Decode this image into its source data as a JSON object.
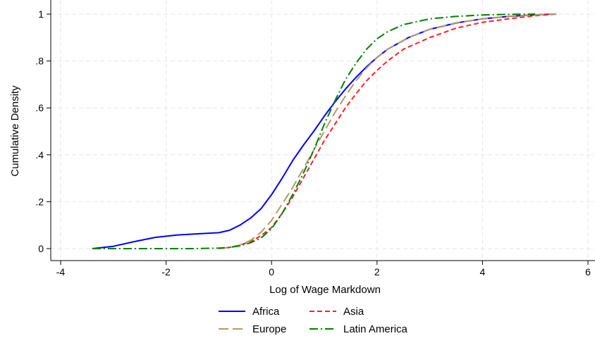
{
  "chart_data": {
    "type": "line",
    "title": "",
    "xlabel": "Log of Wage Markdown",
    "ylabel": "Cumulative Density",
    "xlim": [
      -4,
      6
    ],
    "ylim": [
      0,
      1
    ],
    "grid": true,
    "legend_position": "bottom",
    "x_ticks": [
      {
        "value": -4,
        "label": "-4"
      },
      {
        "value": -2,
        "label": "-2"
      },
      {
        "value": 0,
        "label": "0"
      },
      {
        "value": 2,
        "label": "2"
      },
      {
        "value": 4,
        "label": "4"
      },
      {
        "value": 6,
        "label": "6"
      }
    ],
    "y_ticks": [
      {
        "value": 0,
        "label": "0"
      },
      {
        "value": 0.2,
        "label": ".2"
      },
      {
        "value": 0.4,
        "label": ".4"
      },
      {
        "value": 0.6,
        "label": ".6"
      },
      {
        "value": 0.8,
        "label": ".8"
      },
      {
        "value": 1,
        "label": "1"
      }
    ],
    "series": [
      {
        "name": "Africa",
        "color": "#0000ff",
        "dash": "solid",
        "points": [
          [
            -3.4,
            0.0
          ],
          [
            -3.0,
            0.01
          ],
          [
            -2.6,
            0.03
          ],
          [
            -2.2,
            0.048
          ],
          [
            -1.8,
            0.058
          ],
          [
            -1.4,
            0.063
          ],
          [
            -1.0,
            0.068
          ],
          [
            -0.8,
            0.078
          ],
          [
            -0.6,
            0.1
          ],
          [
            -0.4,
            0.13
          ],
          [
            -0.2,
            0.17
          ],
          [
            0.0,
            0.23
          ],
          [
            0.2,
            0.3
          ],
          [
            0.4,
            0.375
          ],
          [
            0.6,
            0.44
          ],
          [
            0.8,
            0.5
          ],
          [
            1.0,
            0.565
          ],
          [
            1.2,
            0.625
          ],
          [
            1.4,
            0.68
          ],
          [
            1.6,
            0.73
          ],
          [
            1.8,
            0.775
          ],
          [
            2.0,
            0.815
          ],
          [
            2.2,
            0.85
          ],
          [
            2.6,
            0.9
          ],
          [
            3.0,
            0.935
          ],
          [
            3.5,
            0.962
          ],
          [
            4.0,
            0.98
          ],
          [
            4.5,
            0.99
          ],
          [
            5.0,
            0.997
          ],
          [
            5.4,
            1.0
          ]
        ]
      },
      {
        "name": "Asia",
        "color": "#ff2020",
        "dash": "dash",
        "points": [
          [
            -1.0,
            0.0
          ],
          [
            -0.8,
            0.005
          ],
          [
            -0.6,
            0.015
          ],
          [
            -0.4,
            0.03
          ],
          [
            -0.2,
            0.055
          ],
          [
            0.0,
            0.09
          ],
          [
            0.2,
            0.15
          ],
          [
            0.4,
            0.22
          ],
          [
            0.6,
            0.3
          ],
          [
            0.8,
            0.38
          ],
          [
            1.0,
            0.46
          ],
          [
            1.2,
            0.53
          ],
          [
            1.4,
            0.6
          ],
          [
            1.6,
            0.66
          ],
          [
            1.8,
            0.715
          ],
          [
            2.0,
            0.76
          ],
          [
            2.2,
            0.8
          ],
          [
            2.5,
            0.85
          ],
          [
            3.0,
            0.9
          ],
          [
            3.5,
            0.94
          ],
          [
            4.0,
            0.965
          ],
          [
            4.5,
            0.98
          ],
          [
            5.0,
            0.993
          ],
          [
            5.4,
            1.0
          ]
        ]
      },
      {
        "name": "Europe",
        "color": "#b09a6a",
        "dash": "longdash",
        "points": [
          [
            -1.0,
            0.0
          ],
          [
            -0.8,
            0.005
          ],
          [
            -0.6,
            0.015
          ],
          [
            -0.4,
            0.035
          ],
          [
            -0.2,
            0.07
          ],
          [
            0.0,
            0.12
          ],
          [
            0.2,
            0.19
          ],
          [
            0.4,
            0.26
          ],
          [
            0.6,
            0.34
          ],
          [
            0.8,
            0.42
          ],
          [
            1.0,
            0.5
          ],
          [
            1.2,
            0.58
          ],
          [
            1.4,
            0.65
          ],
          [
            1.6,
            0.715
          ],
          [
            1.8,
            0.77
          ],
          [
            2.0,
            0.815
          ],
          [
            2.2,
            0.85
          ],
          [
            2.6,
            0.9
          ],
          [
            3.0,
            0.935
          ],
          [
            3.5,
            0.963
          ],
          [
            4.0,
            0.98
          ],
          [
            4.5,
            0.991
          ],
          [
            5.0,
            0.997
          ],
          [
            5.4,
            1.0
          ]
        ]
      },
      {
        "name": "Latin America",
        "color": "#008000",
        "dash": "dashdot",
        "points": [
          [
            -3.4,
            0.0
          ],
          [
            -2.5,
            0.0
          ],
          [
            -1.5,
            0.0
          ],
          [
            -1.0,
            0.002
          ],
          [
            -0.8,
            0.005
          ],
          [
            -0.6,
            0.012
          ],
          [
            -0.4,
            0.025
          ],
          [
            -0.2,
            0.045
          ],
          [
            0.0,
            0.085
          ],
          [
            0.2,
            0.15
          ],
          [
            0.4,
            0.23
          ],
          [
            0.6,
            0.32
          ],
          [
            0.8,
            0.42
          ],
          [
            1.0,
            0.53
          ],
          [
            1.2,
            0.63
          ],
          [
            1.4,
            0.72
          ],
          [
            1.6,
            0.79
          ],
          [
            1.8,
            0.85
          ],
          [
            2.0,
            0.895
          ],
          [
            2.2,
            0.925
          ],
          [
            2.5,
            0.955
          ],
          [
            3.0,
            0.98
          ],
          [
            3.5,
            0.99
          ],
          [
            4.0,
            0.996
          ],
          [
            4.5,
            0.999
          ],
          [
            5.0,
            1.0
          ]
        ]
      }
    ]
  }
}
